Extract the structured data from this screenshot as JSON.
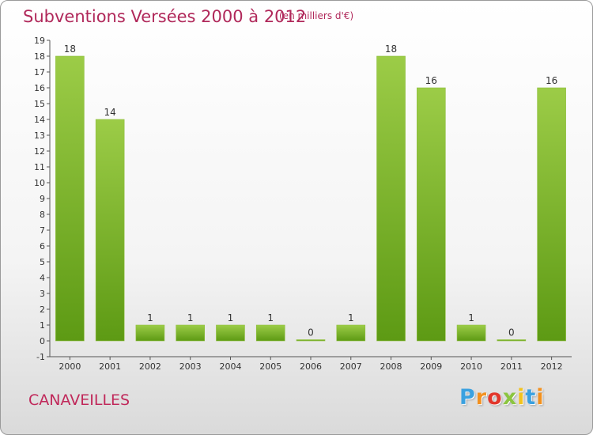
{
  "header": {
    "title": "Subventions Versées 2000 à 2012",
    "unit": "(en milliers d'€)"
  },
  "footer": {
    "place": "CANAVEILLES",
    "logo_text": "Proxiti"
  },
  "colors": {
    "title": "#b0285a",
    "bar_light": "#9ccc47",
    "bar_dark": "#5d9a14",
    "logo": [
      "#3aa1e0",
      "#f2901e",
      "#e2362b",
      "#8bc53f",
      "#f2c31e"
    ]
  },
  "chart_data": {
    "type": "bar",
    "title": "Subventions Versées 2000 à 2012",
    "subtitle": "(en milliers d'€)",
    "categories": [
      "2000",
      "2001",
      "2002",
      "2003",
      "2004",
      "2005",
      "2006",
      "2007",
      "2008",
      "2009",
      "2010",
      "2011",
      "2012"
    ],
    "values": [
      18,
      14,
      1,
      1,
      1,
      1,
      0,
      1,
      18,
      16,
      1,
      0,
      16
    ],
    "data_labels": [
      "18",
      "14",
      "1",
      "1",
      "1",
      "1",
      "0",
      "1",
      "18",
      "16",
      "1",
      "0",
      "16"
    ],
    "y_ticks": [
      "-1",
      "0",
      "1",
      "2",
      "3",
      "4",
      "5",
      "6",
      "7",
      "8",
      "9",
      "10",
      "11",
      "12",
      "13",
      "14",
      "15",
      "16",
      "17",
      "18",
      "19"
    ],
    "ylim": [
      -1,
      19
    ],
    "grid": false,
    "legend": "none"
  }
}
